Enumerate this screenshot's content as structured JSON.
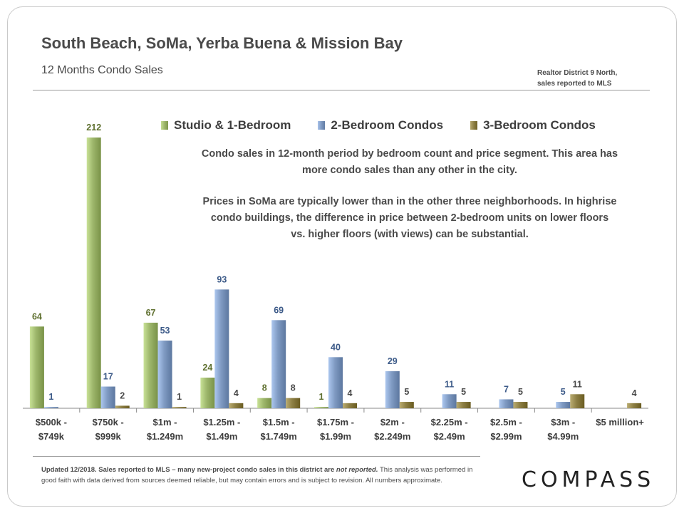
{
  "header": {
    "title": "South Beach, SoMa, Yerba Buena & Mission Bay",
    "subtitle": "12 Months  Condo Sales",
    "source_line1": "Realtor District 9 North,",
    "source_line2": "sales reported to MLS"
  },
  "annotation": {
    "para1_line1": "Condo sales in 12-month period by bedroom count and price segment. This area has",
    "para1_line2": "more condo sales than any other in the city.",
    "para2_line1": "Prices in SoMa are typically lower than in the other three neighborhoods. In highrise",
    "para2_line2": "condo buildings, the difference in price between 2-bedroom units on lower floors",
    "para2_line3": "vs. higher floors (with views) can be substantial."
  },
  "footer": {
    "bold_text": "Updated 12/2018. Sales reported to MLS – many new-project condo sales in this district are",
    "italic_text": "not reported.",
    "rest_text": " This analysis was performed in good faith with data derived from sources deemed reliable, but may contain errors and is subject to revision. All numbers approximate."
  },
  "logo": "COMPASS",
  "chart_data": {
    "type": "bar",
    "title": "",
    "xlabel": "",
    "ylabel": "",
    "ylim": [
      0,
      220
    ],
    "categories": [
      [
        "$500k -",
        "$749k"
      ],
      [
        "$750k -",
        "$999k"
      ],
      [
        "$1m -",
        "$1.249m"
      ],
      [
        "$1.25m -",
        "$1.49m"
      ],
      [
        "$1.5m -",
        "$1.749m"
      ],
      [
        "$1.75m -",
        "$1.99m"
      ],
      [
        "$2m -",
        "$2.249m"
      ],
      [
        "$2.25m -",
        "$2.49m"
      ],
      [
        "$2.5m -",
        "$2.99m"
      ],
      [
        "$3m -",
        "$4.99m"
      ],
      [
        "$5 million+"
      ]
    ],
    "series": [
      {
        "name": "Studio & 1-Bedroom",
        "color": "#9cb56a",
        "label_color": "#5e6f2e",
        "values": [
          64,
          212,
          67,
          24,
          8,
          1,
          null,
          null,
          null,
          null,
          null
        ]
      },
      {
        "name": "2-Bedroom Condos",
        "color": "#7f9ac2",
        "label_color": "#3c5a88",
        "values": [
          1,
          17,
          53,
          93,
          69,
          40,
          29,
          11,
          7,
          5,
          null
        ]
      },
      {
        "name": "3-Bedroom Condos",
        "color": "#8d7f44",
        "label_color": "#4a4a4a",
        "values": [
          null,
          2,
          1,
          4,
          8,
          4,
          5,
          5,
          5,
          11,
          4
        ]
      }
    ]
  }
}
